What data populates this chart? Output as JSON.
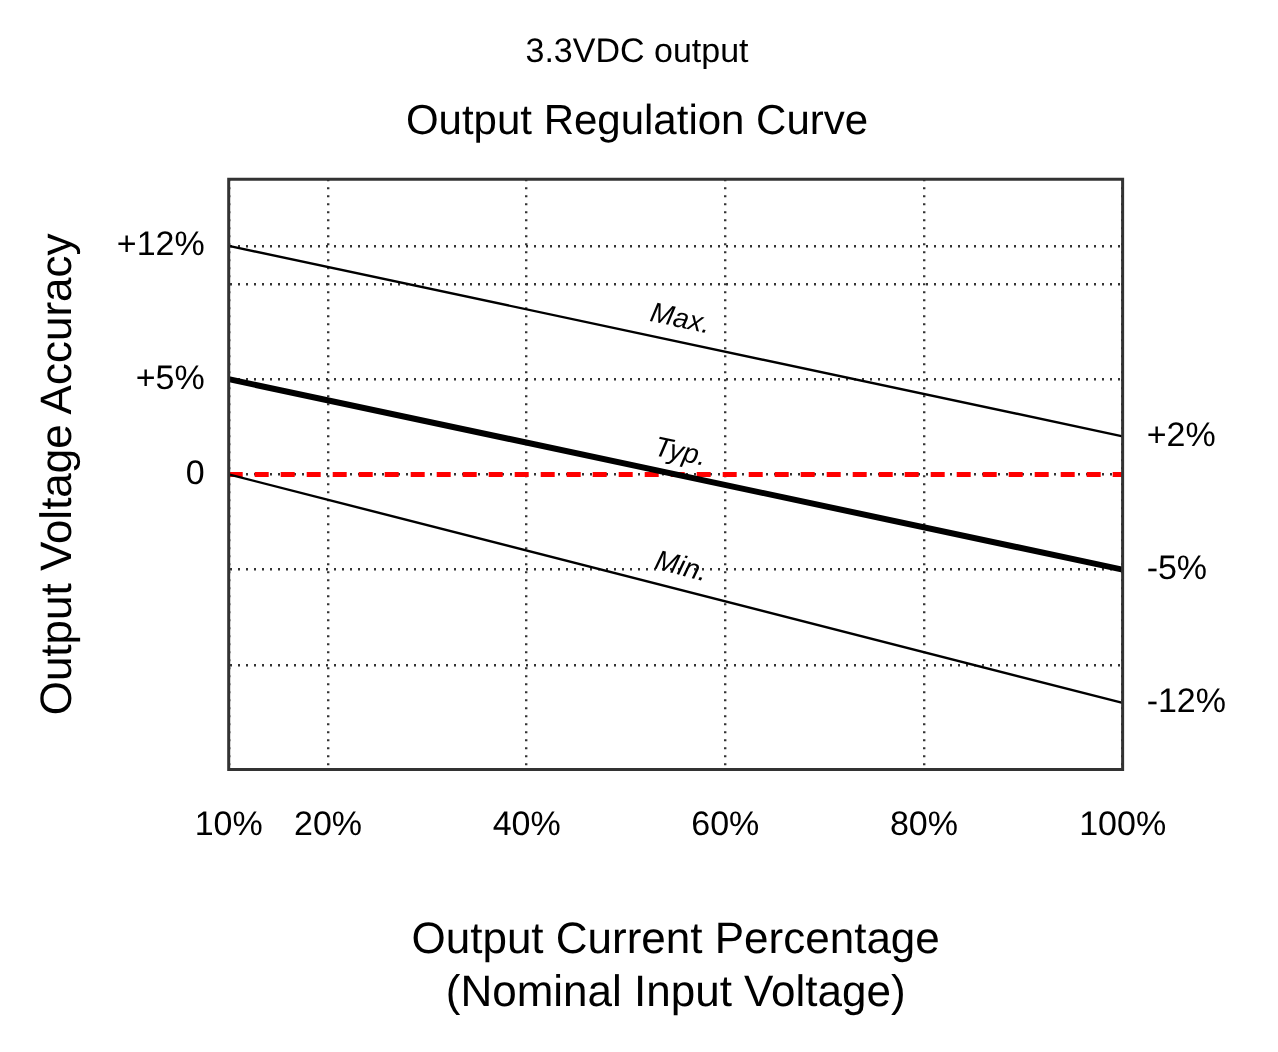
{
  "chart_data": {
    "type": "line",
    "title": "3.3VDC output",
    "subtitle": "Output Regulation Curve",
    "xlabel": "Output Current Percentage\n(Nominal Input Voltage)",
    "ylabel": "Output Voltage Accuracy",
    "x": [
      10,
      100
    ],
    "series": [
      {
        "name": "Max.",
        "color": "#000000",
        "values": [
          12,
          2
        ]
      },
      {
        "name": "Typ.",
        "color": "#000000",
        "values": [
          5,
          -5
        ]
      },
      {
        "name": "Min.",
        "color": "#000000",
        "values": [
          0,
          -12
        ]
      }
    ],
    "xlim": [
      10,
      100
    ],
    "xticks": [
      {
        "value": 10,
        "label": "10%"
      },
      {
        "value": 20,
        "label": "20%"
      },
      {
        "value": 40,
        "label": "40%"
      },
      {
        "value": 60,
        "label": "60%"
      },
      {
        "value": 80,
        "label": "80%"
      },
      {
        "value": 100,
        "label": "100%"
      }
    ],
    "ylim": [
      -15.5,
      15.5
    ],
    "yticks": [
      {
        "value": 12,
        "label": "+12%"
      },
      {
        "value": 10,
        "label": null
      },
      {
        "value": 5,
        "label": "+5%"
      },
      {
        "value": 0,
        "label": "0"
      },
      {
        "value": -5,
        "label": null
      },
      {
        "value": -10,
        "label": null
      }
    ],
    "y2lim": [
      -15.5,
      15.5
    ],
    "y2ticks": [
      {
        "value": 2,
        "label": "+2%"
      },
      {
        "value": -5,
        "label": "-5%"
      },
      {
        "value": -12,
        "label": "-12%"
      }
    ],
    "ref_lines": [
      {
        "axis": "y",
        "value": 0,
        "color": "#ff0000",
        "line_style": "dashed"
      }
    ],
    "grid": true,
    "marker": "none",
    "line_style": "solid"
  }
}
